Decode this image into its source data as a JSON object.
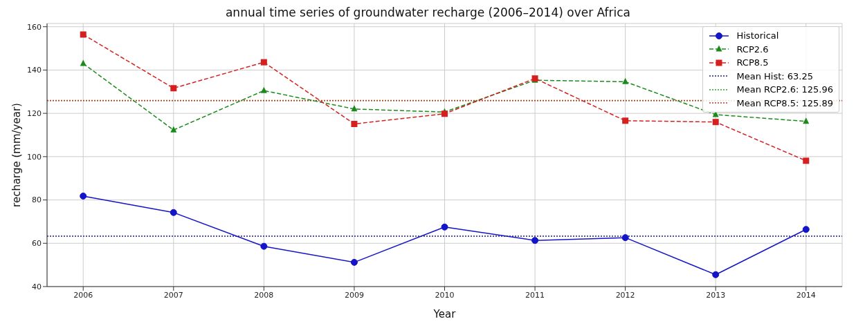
{
  "chart_data": {
    "type": "line",
    "title": "annual time series of groundwater recharge (2006–2014) over Africa",
    "xlabel": "Year",
    "ylabel": "recharge (mm/year)",
    "x": [
      2006,
      2007,
      2008,
      2009,
      2010,
      2011,
      2012,
      2013,
      2014
    ],
    "series": [
      {
        "name": "Historical",
        "color": "#1414c8",
        "marker": "circle",
        "line_style": "solid",
        "values": [
          81.8,
          74.2,
          58.6,
          51.2,
          67.5,
          61.3,
          62.6,
          45.5,
          66.4
        ]
      },
      {
        "name": "RCP2.6",
        "color": "#1a8a1a",
        "marker": "triangle",
        "line_style": "dashed",
        "values": [
          143.0,
          112.3,
          130.5,
          122.0,
          120.6,
          135.3,
          134.6,
          119.4,
          116.3
        ]
      },
      {
        "name": "RCP8.5",
        "color": "#d62020",
        "marker": "square",
        "line_style": "dashed",
        "values": [
          156.4,
          131.6,
          143.6,
          115.1,
          119.8,
          136.1,
          116.6,
          116.0,
          98.1
        ]
      }
    ],
    "ref_lines": [
      {
        "axis": "y",
        "value": 63.25,
        "label": "Mean Hist: 63.25",
        "color": "#1a1a8c",
        "line_style": "dotted"
      },
      {
        "axis": "y",
        "value": 125.96,
        "label": "Mean RCP2.6: 125.96",
        "color": "#2ca02c",
        "line_style": "dotted"
      },
      {
        "axis": "y",
        "value": 125.89,
        "label": "Mean RCP8.5: 125.89",
        "color": "#c0392b",
        "line_style": "dotted"
      }
    ],
    "xlim": [
      2005.6,
      2014.4
    ],
    "xticks": [
      2006,
      2007,
      2008,
      2009,
      2010,
      2011,
      2012,
      2013,
      2014
    ],
    "ylim": [
      40,
      161.5
    ],
    "yticks": [
      40,
      60,
      80,
      100,
      120,
      140,
      160
    ],
    "grid": true,
    "legend": "top right"
  }
}
